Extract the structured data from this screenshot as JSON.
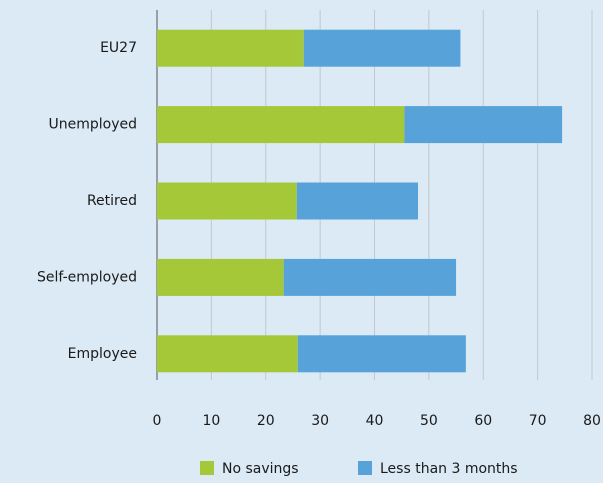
{
  "chart_data": {
    "type": "stacked_barh",
    "categories": [
      "EU27",
      "Unemployed",
      "Retired",
      "Self-employed",
      "Employee"
    ],
    "series": [
      {
        "name": "No savings",
        "color": "#a5c838",
        "values": [
          27,
          45.5,
          25.7,
          23.3,
          25.9
        ]
      },
      {
        "name": "Less than 3 months",
        "color": "#57a3d9",
        "values": [
          28.8,
          29,
          22.3,
          31.7,
          30.9
        ]
      }
    ],
    "xlim": [
      0,
      80
    ],
    "xticks": [
      0,
      10,
      20,
      30,
      40,
      50,
      60,
      70,
      80
    ],
    "grid": true,
    "legend": "bottom"
  }
}
